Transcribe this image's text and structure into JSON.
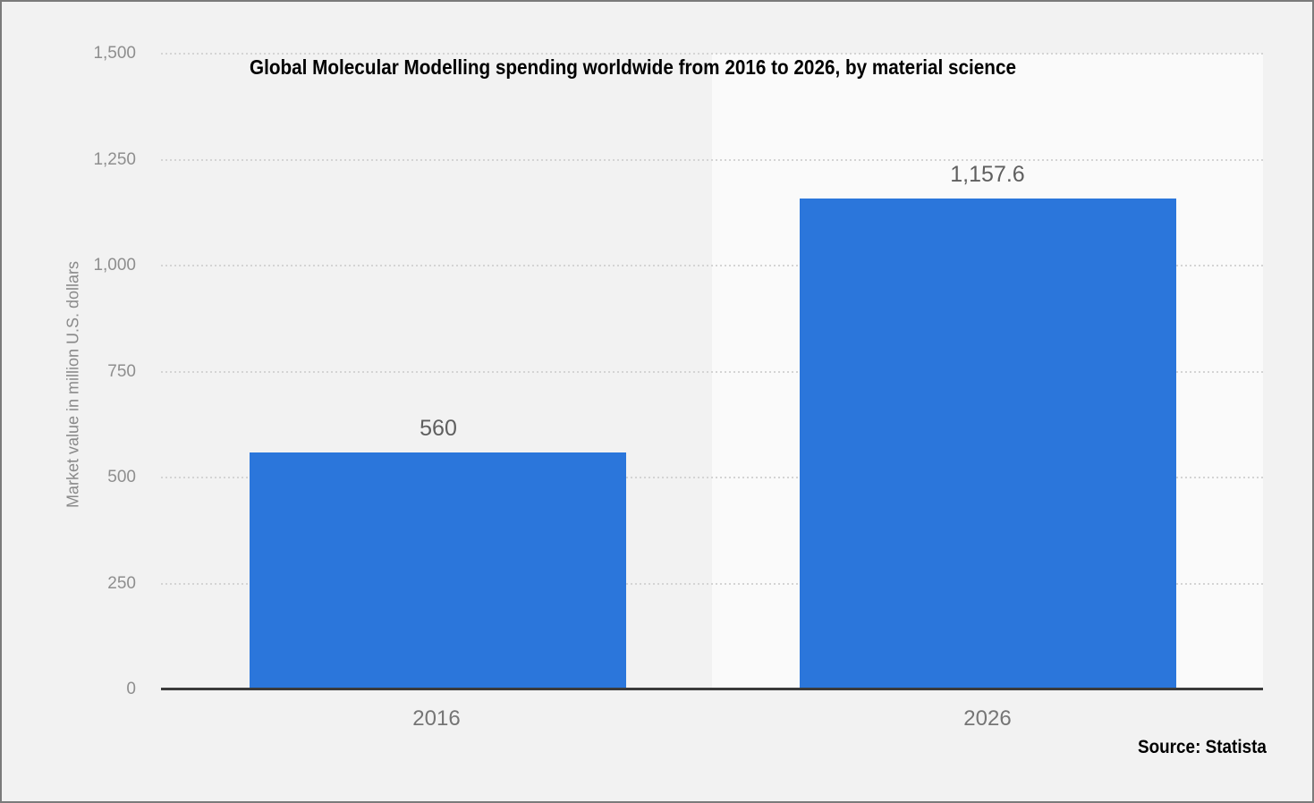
{
  "title": "Global Molecular Modelling spending worldwide from 2016 to 2026, by material science",
  "source": "Source: Statista",
  "y_axis_title": "Market value in million U.S. dollars",
  "chart_data": {
    "type": "bar",
    "title": "Global Molecular Modelling spending worldwide from 2016 to 2026, by material science",
    "categories": [
      "2016",
      "2026"
    ],
    "values": [
      560,
      1157.6
    ],
    "data_labels": [
      "560",
      "1,157.6"
    ],
    "xlabel": "",
    "ylabel": "Market value in million U.S. dollars",
    "ylim": [
      0,
      1500
    ],
    "yticks": [
      0,
      250,
      500,
      750,
      1000,
      1250,
      1500
    ],
    "ytick_labels": [
      "0",
      "250",
      "500",
      "750",
      "1,000",
      "1,250",
      "1,500"
    ],
    "grid": "horizontal-dotted",
    "legend": "none",
    "source": "Source: Statista",
    "colors": {
      "bar": "#2b76db",
      "background": "#f2f2f2",
      "band_highlight": "#fafafa",
      "gridline": "#d4d4d4",
      "axis_line": "#3b3b3b",
      "tick_label": "#8e8e8e",
      "category_label": "#757575",
      "value_label": "#5f5f5f",
      "title_text": "#000000"
    }
  }
}
